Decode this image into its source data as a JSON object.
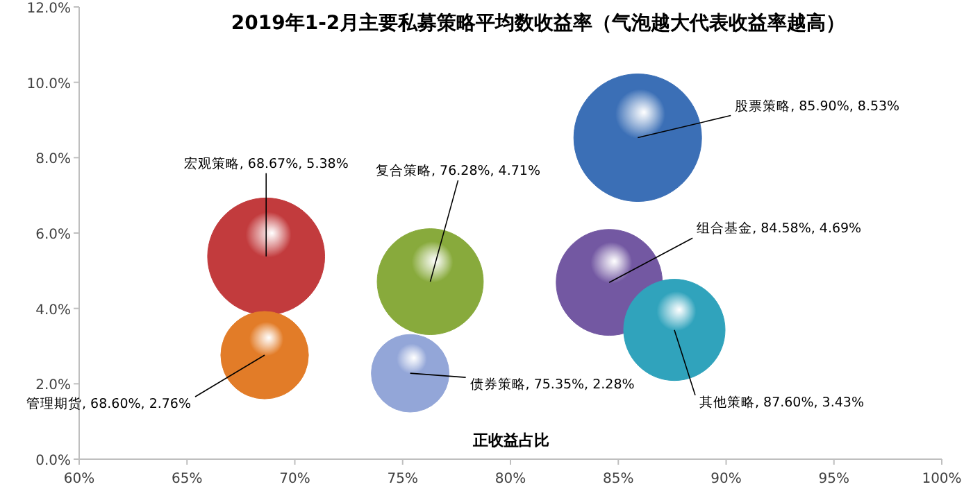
{
  "chart_data": {
    "type": "bubble",
    "title": "2019年1-2月主要私募策略平均数收益率（气泡越大代表收益率越高）",
    "xlabel": "正收益占比",
    "x": [
      85.9,
      68.67,
      76.28,
      84.58,
      87.6,
      68.6,
      75.35
    ],
    "values": [
      8.53,
      5.38,
      4.71,
      4.69,
      3.43,
      2.76,
      2.28
    ],
    "sizes": [
      1,
      0.84,
      0.69,
      0.69,
      0.63,
      0.47,
      0.37
    ],
    "colors": [
      "#3b6fb6",
      "#c23b3d",
      "#88aa3c",
      "#7358a2",
      "#30a3bc",
      "#e27c28",
      "#93a6d8"
    ],
    "value_labels": [
      "股票策略, 85.90%, 8.53%",
      "宏观策略, 68.67%, 5.38%",
      "复合策略, 76.28%, 4.71%",
      "组合基金, 84.58%, 4.69%",
      "其他策略, 87.60%, 3.43%",
      "管理期货, 68.60%, 2.76%",
      "债券策略, 75.35%, 2.28%"
    ],
    "xlim": [
      60,
      100
    ],
    "xticks": [
      {
        "value": 60,
        "label": "60%"
      },
      {
        "value": 65,
        "label": "65%"
      },
      {
        "value": 70,
        "label": "70%"
      },
      {
        "value": 75,
        "label": "75%"
      },
      {
        "value": 80,
        "label": "80%"
      },
      {
        "value": 85,
        "label": "85%"
      },
      {
        "value": 90,
        "label": "90%"
      },
      {
        "value": 95,
        "label": "95%"
      },
      {
        "value": 100,
        "label": "100%"
      }
    ],
    "ylim": [
      0,
      12
    ],
    "yticks": [
      {
        "value": 0,
        "label": "0.0%"
      },
      {
        "value": 2,
        "label": "2.0%"
      },
      {
        "value": 4,
        "label": "4.0%"
      },
      {
        "value": 6,
        "label": "6.0%"
      },
      {
        "value": 8,
        "label": "8.0%"
      },
      {
        "value": 10,
        "label": "10.0%"
      },
      {
        "value": 12,
        "label": "12.0%"
      }
    ]
  }
}
